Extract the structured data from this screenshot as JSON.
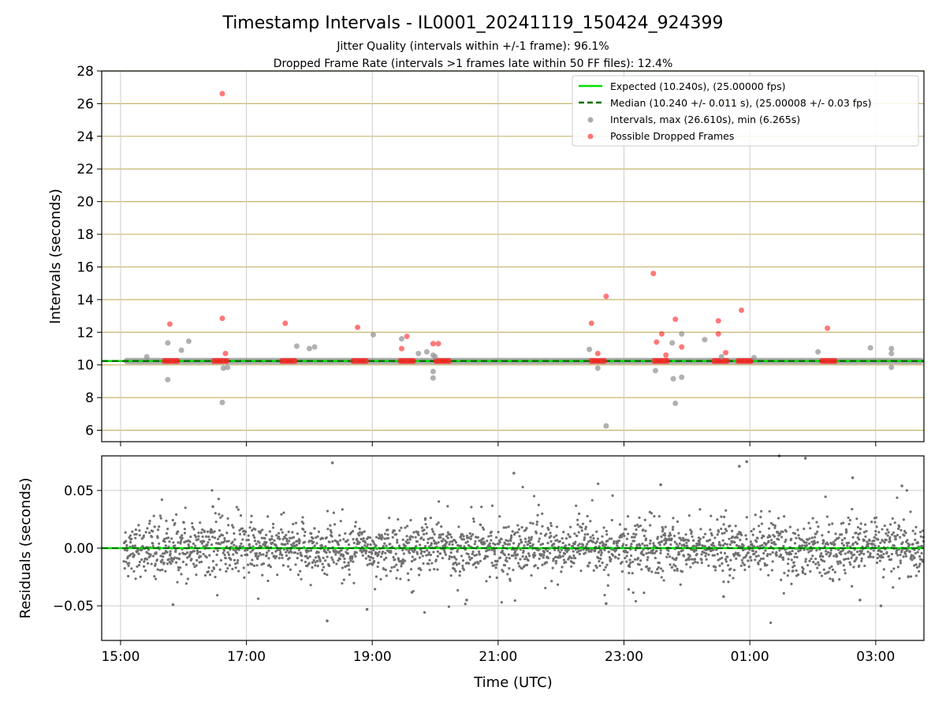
{
  "figure": {
    "title": "Timestamp Intervals - IL0001_20241119_150424_924399",
    "subtitle_lines": [
      "Jitter Quality (intervals within +/-1 frame): 96.1%",
      "Dropped Frame Rate (intervals >1 frames late within 50 FF files): 12.4%"
    ]
  },
  "chart_data": [
    {
      "type": "scatter",
      "panel": "intervals",
      "ylabel": "Intervals (seconds)",
      "xlabel": "",
      "xlim": [
        "14:42",
        "03:46"
      ],
      "ylim": [
        5.3,
        28
      ],
      "yticks": [
        6,
        8,
        10,
        12,
        14,
        16,
        18,
        20,
        22,
        24,
        26,
        28
      ],
      "xticks": [
        "15:00",
        "17:00",
        "19:00",
        "21:00",
        "23:00",
        "01:00",
        "03:00"
      ],
      "grid": "on",
      "legend_position": "top-right",
      "legend": [
        "Expected (10.240s), (25.00000 fps)",
        "Median (10.240 +/- 0.011 s), (25.00008 +/- 0.03 fps)",
        "Intervals, max (26.610s), min (6.265s)",
        "Possible Dropped Frames"
      ],
      "reference_lines": {
        "expected": 10.24,
        "median": 10.24
      },
      "baseline_band": {
        "x_start": "15:03",
        "x_end": "03:46",
        "y": 10.24
      },
      "colors": {
        "expected": "#00e000",
        "median": "#007000",
        "intervals": "#909090",
        "dropped": "#ff2020",
        "gridline": "#c8b46e"
      },
      "dropped_clusters": [
        {
          "x": "15:48",
          "y": 10.24
        },
        {
          "x": "16:35",
          "y": 10.24
        },
        {
          "x": "17:40",
          "y": 10.24
        },
        {
          "x": "18:48",
          "y": 10.24
        },
        {
          "x": "19:33",
          "y": 10.24
        },
        {
          "x": "20:07",
          "y": 10.24
        },
        {
          "x": "22:35",
          "y": 10.24
        },
        {
          "x": "23:35",
          "y": 10.24
        },
        {
          "x": "00:32",
          "y": 10.24
        },
        {
          "x": "00:55",
          "y": 10.24
        },
        {
          "x": "02:15",
          "y": 10.24
        }
      ],
      "series": [
        {
          "name": "Intervals, max (26.610s), min (6.265s)",
          "points": [
            {
              "x": "15:25",
              "y": 10.5
            },
            {
              "x": "15:45",
              "y": 11.35
            },
            {
              "x": "15:45",
              "y": 9.1
            },
            {
              "x": "15:58",
              "y": 10.9
            },
            {
              "x": "16:05",
              "y": 11.45
            },
            {
              "x": "16:37",
              "y": 7.7
            },
            {
              "x": "16:38",
              "y": 9.8
            },
            {
              "x": "16:42",
              "y": 9.85
            },
            {
              "x": "17:48",
              "y": 11.15
            },
            {
              "x": "18:00",
              "y": 11.0
            },
            {
              "x": "18:05",
              "y": 11.1
            },
            {
              "x": "19:01",
              "y": 11.85
            },
            {
              "x": "19:28",
              "y": 11.6
            },
            {
              "x": "19:44",
              "y": 10.7
            },
            {
              "x": "19:52",
              "y": 10.8
            },
            {
              "x": "19:58",
              "y": 10.6
            },
            {
              "x": "19:58",
              "y": 9.6
            },
            {
              "x": "19:58",
              "y": 9.2
            },
            {
              "x": "20:00",
              "y": 10.5
            },
            {
              "x": "22:27",
              "y": 10.95
            },
            {
              "x": "22:35",
              "y": 9.8
            },
            {
              "x": "22:43",
              "y": 6.265
            },
            {
              "x": "23:30",
              "y": 9.65
            },
            {
              "x": "23:46",
              "y": 11.35
            },
            {
              "x": "23:47",
              "y": 9.15
            },
            {
              "x": "23:49",
              "y": 7.65
            },
            {
              "x": "23:55",
              "y": 11.9
            },
            {
              "x": "23:55",
              "y": 9.25
            },
            {
              "x": "00:17",
              "y": 11.55
            },
            {
              "x": "00:33",
              "y": 10.5
            },
            {
              "x": "01:04",
              "y": 10.45
            },
            {
              "x": "02:05",
              "y": 10.8
            },
            {
              "x": "02:55",
              "y": 11.05
            },
            {
              "x": "03:15",
              "y": 11.0
            },
            {
              "x": "03:15",
              "y": 10.7
            },
            {
              "x": "03:15",
              "y": 9.85
            }
          ]
        },
        {
          "name": "Possible Dropped Frames",
          "points": [
            {
              "x": "15:47",
              "y": 12.5
            },
            {
              "x": "16:37",
              "y": 26.61
            },
            {
              "x": "16:37",
              "y": 12.85
            },
            {
              "x": "16:40",
              "y": 10.7
            },
            {
              "x": "17:37",
              "y": 12.55
            },
            {
              "x": "18:46",
              "y": 12.3
            },
            {
              "x": "19:28",
              "y": 11.0
            },
            {
              "x": "19:33",
              "y": 11.75
            },
            {
              "x": "19:58",
              "y": 11.3
            },
            {
              "x": "20:03",
              "y": 11.3
            },
            {
              "x": "22:29",
              "y": 12.55
            },
            {
              "x": "22:35",
              "y": 10.7
            },
            {
              "x": "22:43",
              "y": 14.2
            },
            {
              "x": "23:28",
              "y": 15.6
            },
            {
              "x": "23:31",
              "y": 11.4
            },
            {
              "x": "23:36",
              "y": 11.9
            },
            {
              "x": "23:40",
              "y": 10.6
            },
            {
              "x": "23:49",
              "y": 12.8
            },
            {
              "x": "23:55",
              "y": 11.1
            },
            {
              "x": "00:30",
              "y": 12.7
            },
            {
              "x": "00:30",
              "y": 11.9
            },
            {
              "x": "00:37",
              "y": 10.75
            },
            {
              "x": "00:52",
              "y": 13.35
            },
            {
              "x": "02:14",
              "y": 12.25
            }
          ]
        }
      ]
    },
    {
      "type": "scatter",
      "panel": "residuals",
      "ylabel": "Residuals (seconds)",
      "xlabel": "Time (UTC)",
      "xlim": [
        "14:42",
        "03:46"
      ],
      "ylim": [
        -0.08,
        0.08
      ],
      "yticks": [
        0.05,
        0.0,
        -0.05
      ],
      "ytick_labels": [
        "0.05",
        "0.00",
        "−0.05"
      ],
      "xticks": [
        "15:00",
        "17:00",
        "19:00",
        "21:00",
        "23:00",
        "01:00",
        "03:00"
      ],
      "grid": "on",
      "reference_lines": {
        "expected": 0.0,
        "median": 0.0
      },
      "colors": {
        "points": "#707070"
      },
      "residual_spread": {
        "typical_sd": 0.011
      },
      "outliers": [
        {
          "x": "15:50",
          "y": -0.049
        },
        {
          "x": "16:28",
          "y": 0.036
        },
        {
          "x": "18:17",
          "y": -0.063
        },
        {
          "x": "18:22",
          "y": 0.074
        },
        {
          "x": "18:55",
          "y": -0.053
        },
        {
          "x": "20:30",
          "y": -0.045
        },
        {
          "x": "21:15",
          "y": 0.065
        },
        {
          "x": "22:43",
          "y": -0.048
        },
        {
          "x": "23:35",
          "y": 0.055
        },
        {
          "x": "00:35",
          "y": -0.042
        },
        {
          "x": "00:50",
          "y": 0.071
        },
        {
          "x": "00:57",
          "y": 0.075
        },
        {
          "x": "01:28",
          "y": 0.08
        },
        {
          "x": "01:53",
          "y": 0.078
        },
        {
          "x": "02:38",
          "y": 0.061
        },
        {
          "x": "02:45",
          "y": -0.045
        },
        {
          "x": "03:05",
          "y": -0.05
        },
        {
          "x": "03:25",
          "y": 0.054
        }
      ]
    }
  ]
}
